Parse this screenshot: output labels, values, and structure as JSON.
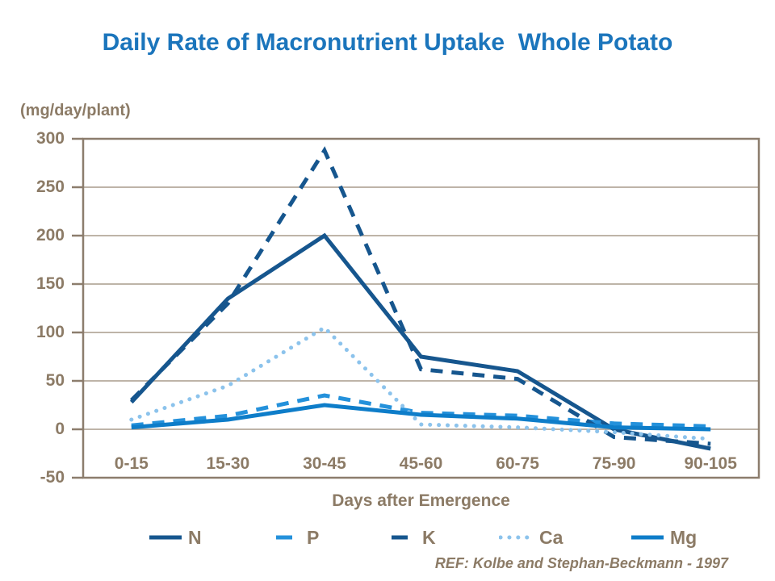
{
  "slide": {
    "reference": "REF: Kolbe and Stephan-Beckmann - 1997"
  },
  "chart_data": {
    "type": "line",
    "title": "Daily Rate of Macronutrient Uptake  Whole Potato",
    "ylabel": "(mg/day/plant)",
    "xlabel": "Days after Emergence",
    "categories": [
      "0-15",
      "15-30",
      "30-45",
      "45-60",
      "60-75",
      "75-90",
      "90-105"
    ],
    "series": [
      {
        "name": "N",
        "line_style": "solid",
        "color": "#16568E",
        "values": [
          28,
          135,
          200,
          75,
          60,
          0,
          -20
        ]
      },
      {
        "name": "P",
        "line_style": "dashed",
        "color": "#2491DB",
        "values": [
          4,
          14,
          35,
          17,
          14,
          6,
          3
        ]
      },
      {
        "name": "K",
        "line_style": "dashed",
        "color": "#16568E",
        "values": [
          30,
          130,
          288,
          62,
          52,
          -8,
          -15
        ]
      },
      {
        "name": "Ca",
        "line_style": "dotted",
        "color": "#8CC3EC",
        "values": [
          10,
          45,
          105,
          5,
          2,
          -3,
          -10
        ]
      },
      {
        "name": "Mg",
        "line_style": "solid",
        "color": "#0E7DC9",
        "values": [
          2,
          10,
          25,
          15,
          11,
          2,
          0
        ]
      }
    ],
    "ylim": [
      -50,
      300
    ],
    "ytick_step": 50,
    "grid": "horizontal",
    "legend_position": "bottom"
  },
  "colors": {
    "title": "#1B75BC",
    "axis_text": "#8C7B66",
    "gridline": "#A89B8C",
    "axis_line": "#8C7D6D",
    "background": "#FFFFFF"
  }
}
